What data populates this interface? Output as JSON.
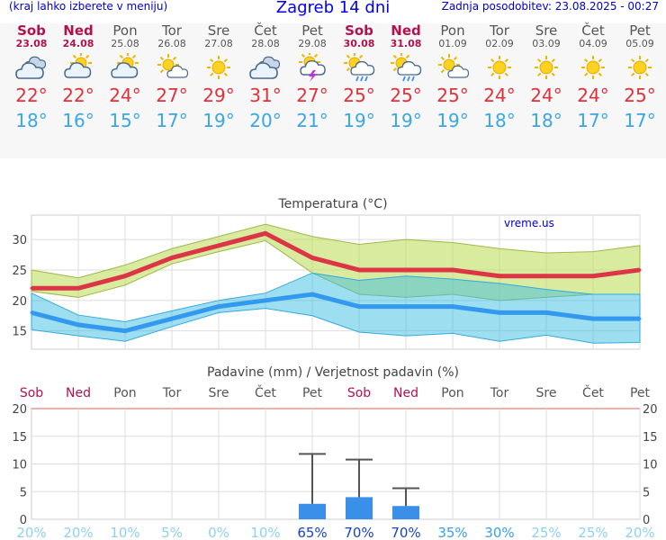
{
  "header": {
    "menu_link": "(kraj lahko izberete v meniju)",
    "title": "Zagreb 14 dni",
    "updated": "Zadnja posodobitev: 23.08.2025 - 00:27"
  },
  "colors": {
    "max_line": "#dc3545",
    "min_line": "#3399ee",
    "weekend": "#b0124e",
    "precip_bar": "#3a8fe8"
  },
  "days": [
    {
      "name": "Sob",
      "date": "23.08",
      "weekend": true,
      "icon": "cloudy-icon",
      "tmax": "22°",
      "tmin": "18°"
    },
    {
      "name": "Ned",
      "date": "24.08",
      "weekend": true,
      "icon": "partly-cloudy-icon",
      "tmax": "22°",
      "tmin": "16°"
    },
    {
      "name": "Pon",
      "date": "25.08",
      "weekend": false,
      "icon": "partly-cloudy-icon",
      "tmax": "24°",
      "tmin": "15°"
    },
    {
      "name": "Tor",
      "date": "26.08",
      "weekend": false,
      "icon": "sun-cloud-icon",
      "tmax": "27°",
      "tmin": "17°"
    },
    {
      "name": "Sre",
      "date": "27.08",
      "weekend": false,
      "icon": "sun-icon",
      "tmax": "29°",
      "tmin": "19°"
    },
    {
      "name": "Čet",
      "date": "28.08",
      "weekend": false,
      "icon": "cloudy-icon",
      "tmax": "31°",
      "tmin": "20°"
    },
    {
      "name": "Pet",
      "date": "29.08",
      "weekend": false,
      "icon": "thunderstorm-icon",
      "tmax": "27°",
      "tmin": "21°"
    },
    {
      "name": "Sob",
      "date": "30.08",
      "weekend": true,
      "icon": "sun-rain-icon",
      "tmax": "25°",
      "tmin": "19°"
    },
    {
      "name": "Ned",
      "date": "31.08",
      "weekend": true,
      "icon": "sun-rain-icon",
      "tmax": "25°",
      "tmin": "19°"
    },
    {
      "name": "Pon",
      "date": "01.09",
      "weekend": false,
      "icon": "sun-cloud-icon",
      "tmax": "25°",
      "tmin": "19°"
    },
    {
      "name": "Tor",
      "date": "02.09",
      "weekend": false,
      "icon": "sun-icon",
      "tmax": "24°",
      "tmin": "18°"
    },
    {
      "name": "Sre",
      "date": "03.09",
      "weekend": false,
      "icon": "sun-icon",
      "tmax": "24°",
      "tmin": "18°"
    },
    {
      "name": "Čet",
      "date": "04.09",
      "weekend": false,
      "icon": "sun-icon",
      "tmax": "24°",
      "tmin": "17°"
    },
    {
      "name": "Pet",
      "date": "05.09",
      "weekend": false,
      "icon": "sun-icon",
      "tmax": "25°",
      "tmin": "17°"
    }
  ],
  "chart_data": [
    {
      "type": "line",
      "title": "Temperatura (°C)",
      "watermark": "vreme.us",
      "categories": [
        "23.08",
        "24.08",
        "25.08",
        "26.08",
        "27.08",
        "28.08",
        "29.08",
        "30.08",
        "31.08",
        "01.09",
        "02.09",
        "03.09",
        "04.09",
        "05.09"
      ],
      "ylim": [
        12,
        34
      ],
      "yticks": [
        15,
        20,
        25,
        30
      ],
      "series": [
        {
          "values": [
            22,
            22,
            24,
            27,
            29,
            31,
            27,
            25,
            25,
            25,
            24,
            24,
            24,
            25
          ]
        },
        {
          "values": [
            18,
            16,
            15,
            17,
            19,
            20,
            21,
            19,
            19,
            19,
            18,
            18,
            17,
            17
          ]
        }
      ],
      "max_range": {
        "low": [
          21.5,
          20.5,
          22.5,
          26,
          28,
          29.8,
          24.5,
          21,
          20.5,
          21,
          20,
          20.5,
          21,
          21
        ],
        "high": [
          25,
          23.7,
          25.8,
          28.5,
          30.5,
          32.5,
          30.5,
          29.2,
          30,
          29.5,
          28.5,
          27.8,
          28,
          29
        ]
      },
      "min_range": {
        "low": [
          15.2,
          14.2,
          13.3,
          15.7,
          18,
          18.7,
          17.5,
          14.8,
          14.2,
          14.6,
          13.3,
          14.3,
          13,
          13.1
        ],
        "high": [
          21.2,
          17.6,
          16.5,
          18.3,
          20,
          21.2,
          24.5,
          23.3,
          24,
          23.5,
          22.8,
          21.8,
          21,
          21
        ]
      },
      "grid": true
    },
    {
      "type": "bar",
      "title": "Padavine (mm) / Verjetnost padavin (%)",
      "categories": [
        "Sob",
        "Ned",
        "Pon",
        "Tor",
        "Sre",
        "Čet",
        "Pet",
        "Sob",
        "Ned",
        "Pon",
        "Tor",
        "Sre",
        "Čet",
        "Pet"
      ],
      "ylim": [
        0,
        20
      ],
      "yticks": [
        0,
        5,
        10,
        15,
        20
      ],
      "values": [
        0,
        0,
        0,
        0,
        0,
        0,
        2.8,
        4,
        2.4,
        0,
        0,
        0,
        0,
        0
      ],
      "error_high": [
        0,
        0,
        0,
        0,
        0,
        0,
        11.8,
        10.8,
        5.6,
        0,
        0,
        0,
        0,
        0
      ],
      "probability": [
        "20%",
        "20%",
        "10%",
        "5%",
        "0%",
        "10%",
        "65%",
        "70%",
        "70%",
        "35%",
        "30%",
        "25%",
        "25%",
        "20%"
      ],
      "grid": true
    }
  ]
}
